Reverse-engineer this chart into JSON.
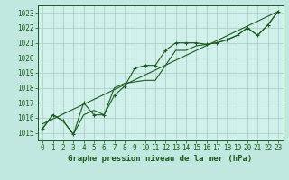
{
  "title": "Graphe pression niveau de la mer (hPa)",
  "background_color": "#c0e8e0",
  "plot_bg_color": "#d0f0ec",
  "grid_color": "#a8c8c0",
  "line_color": "#1a5c1a",
  "xlim": [
    -0.5,
    23.5
  ],
  "ylim": [
    1014.5,
    1023.5
  ],
  "xticks": [
    0,
    1,
    2,
    3,
    4,
    5,
    6,
    7,
    8,
    9,
    10,
    11,
    12,
    13,
    14,
    15,
    16,
    17,
    18,
    19,
    20,
    21,
    22,
    23
  ],
  "yticks": [
    1015,
    1016,
    1017,
    1018,
    1019,
    1020,
    1021,
    1022,
    1023
  ],
  "series1_x": [
    0,
    1,
    2,
    3,
    4,
    5,
    6,
    7,
    8,
    9,
    10,
    11,
    12,
    13,
    14,
    15,
    16,
    17,
    18,
    19,
    20,
    21,
    22,
    23
  ],
  "series1_y": [
    1015.3,
    1016.2,
    1015.8,
    1014.9,
    1017.0,
    1016.2,
    1016.2,
    1017.5,
    1018.1,
    1019.3,
    1019.5,
    1019.5,
    1020.5,
    1021.0,
    1021.0,
    1021.0,
    1020.9,
    1021.0,
    1021.2,
    1021.5,
    1022.0,
    1021.5,
    1022.2,
    1023.1
  ],
  "series2_x": [
    0,
    1,
    2,
    3,
    4,
    5,
    6,
    7,
    8,
    9,
    10,
    11,
    12,
    13,
    14,
    15,
    16,
    17,
    18,
    19,
    20,
    21,
    22,
    23
  ],
  "series2_y": [
    1015.3,
    1016.2,
    1015.8,
    1014.9,
    1016.2,
    1016.5,
    1016.2,
    1018.0,
    1018.3,
    1018.4,
    1018.5,
    1018.5,
    1019.5,
    1020.5,
    1020.5,
    1020.8,
    1020.9,
    1021.0,
    1021.2,
    1021.5,
    1022.0,
    1021.5,
    1022.2,
    1023.1
  ],
  "trend_x": [
    0,
    23
  ],
  "trend_y": [
    1015.6,
    1023.1
  ],
  "xlabel_fontsize": 6.5,
  "tick_fontsize": 5.5
}
